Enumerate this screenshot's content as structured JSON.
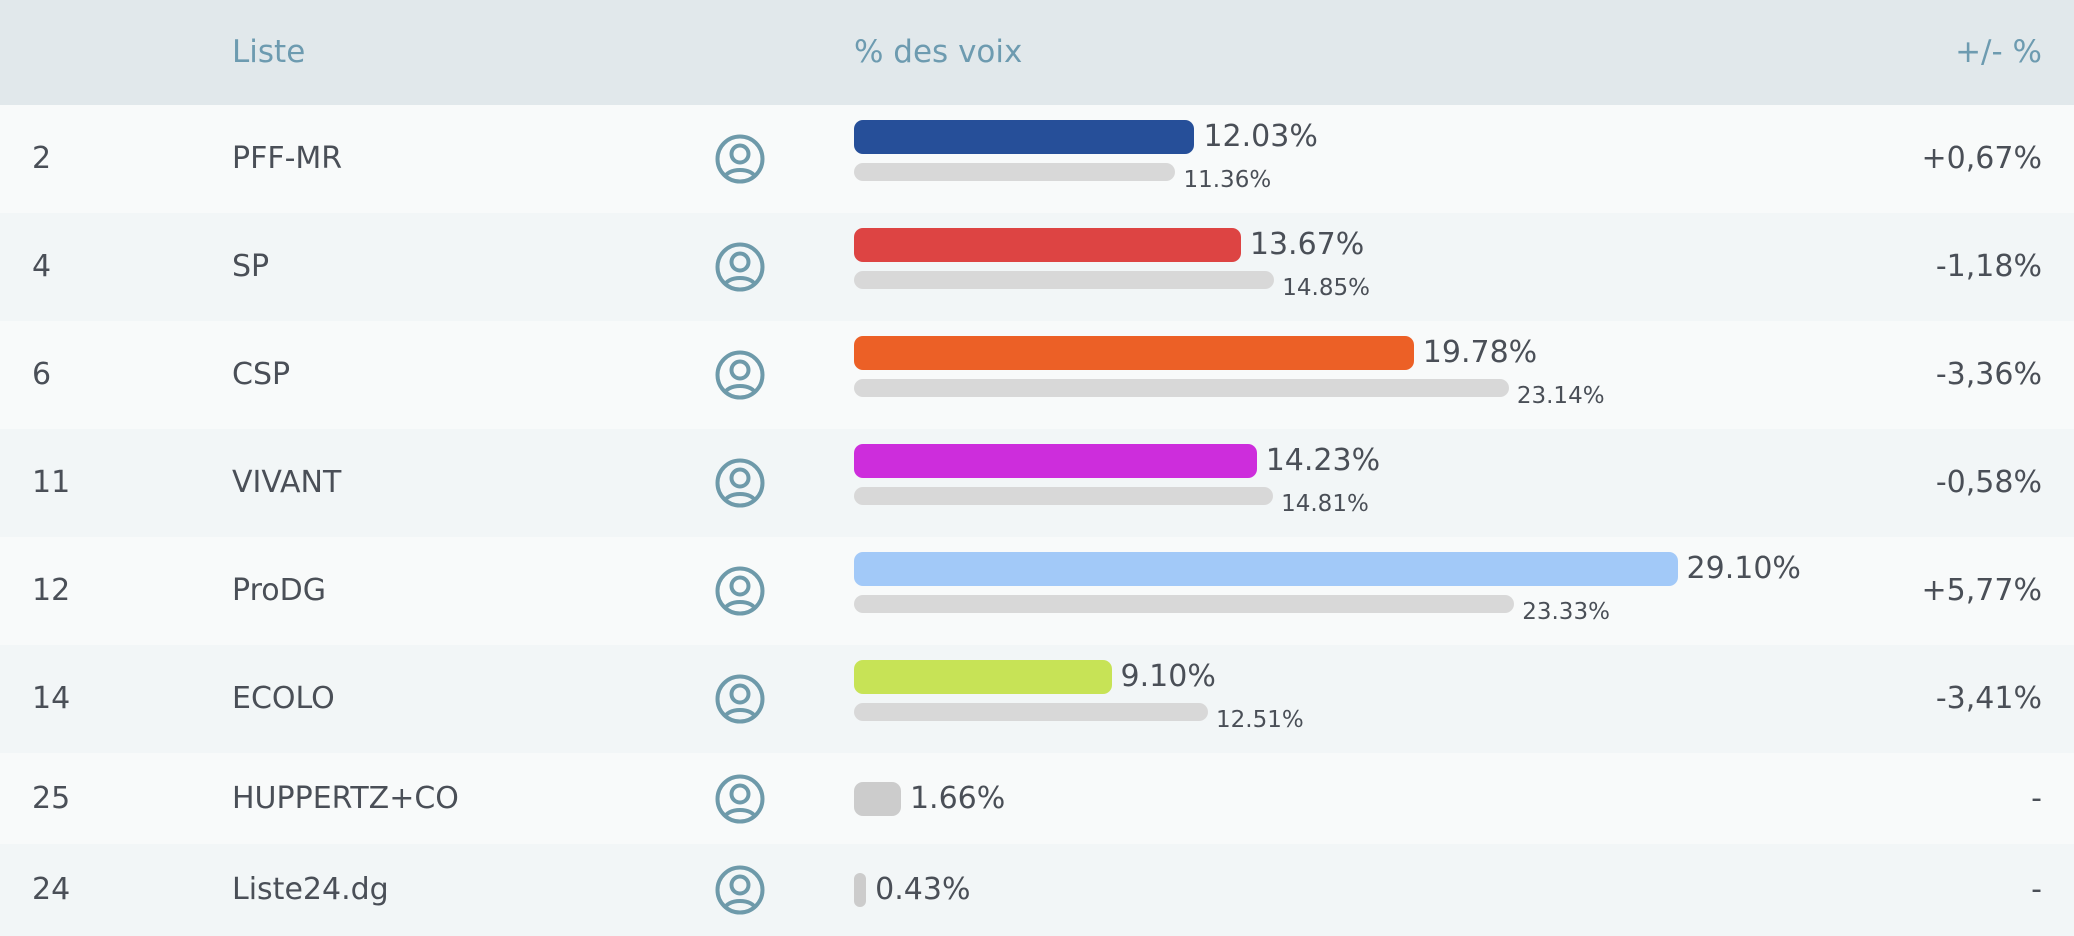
{
  "header": {
    "list_label": "Liste",
    "votes_label": "% des voix",
    "change_label": "+/- %"
  },
  "rows": [
    {
      "number": "2",
      "name": "PFF-MR",
      "icon": "user-circle-icon",
      "share": 12.03,
      "share_label": "12.03%",
      "prev": 11.36,
      "prev_label": "11.36%",
      "delta": "+0,67%",
      "color": "#264f99"
    },
    {
      "number": "4",
      "name": "SP",
      "icon": "user-circle-icon",
      "share": 13.67,
      "share_label": "13.67%",
      "prev": 14.85,
      "prev_label": "14.85%",
      "delta": "-1,18%",
      "color": "#dd4443"
    },
    {
      "number": "6",
      "name": "CSP",
      "icon": "user-circle-icon",
      "share": 19.78,
      "share_label": "19.78%",
      "prev": 23.14,
      "prev_label": "23.14%",
      "delta": "-3,36%",
      "color": "#ec6026"
    },
    {
      "number": "11",
      "name": "VIVANT",
      "icon": "user-circle-icon",
      "share": 14.23,
      "share_label": "14.23%",
      "prev": 14.81,
      "prev_label": "14.81%",
      "delta": "-0,58%",
      "color": "#cd2ddc"
    },
    {
      "number": "12",
      "name": "ProDG",
      "icon": "user-circle-icon",
      "share": 29.1,
      "share_label": "29.10%",
      "prev": 23.33,
      "prev_label": "23.33%",
      "delta": "+5,77%",
      "color": "#a2c9f8"
    },
    {
      "number": "14",
      "name": "ECOLO",
      "icon": "user-circle-icon",
      "share": 9.1,
      "share_label": "9.10%",
      "prev": 12.51,
      "prev_label": "12.51%",
      "delta": "-3,41%",
      "color": "#c7e356"
    },
    {
      "number": "25",
      "name": "HUPPERTZ+CO",
      "icon": "user-circle-icon",
      "share": 1.66,
      "share_label": "1.66%",
      "prev": null,
      "prev_label": "",
      "delta": "-",
      "color": "#cccccc"
    },
    {
      "number": "24",
      "name": "Liste24.dg",
      "icon": "user-circle-icon",
      "share": 0.43,
      "share_label": "0.43%",
      "prev": null,
      "prev_label": "",
      "delta": "-",
      "color": "#cccccc"
    }
  ]
}
